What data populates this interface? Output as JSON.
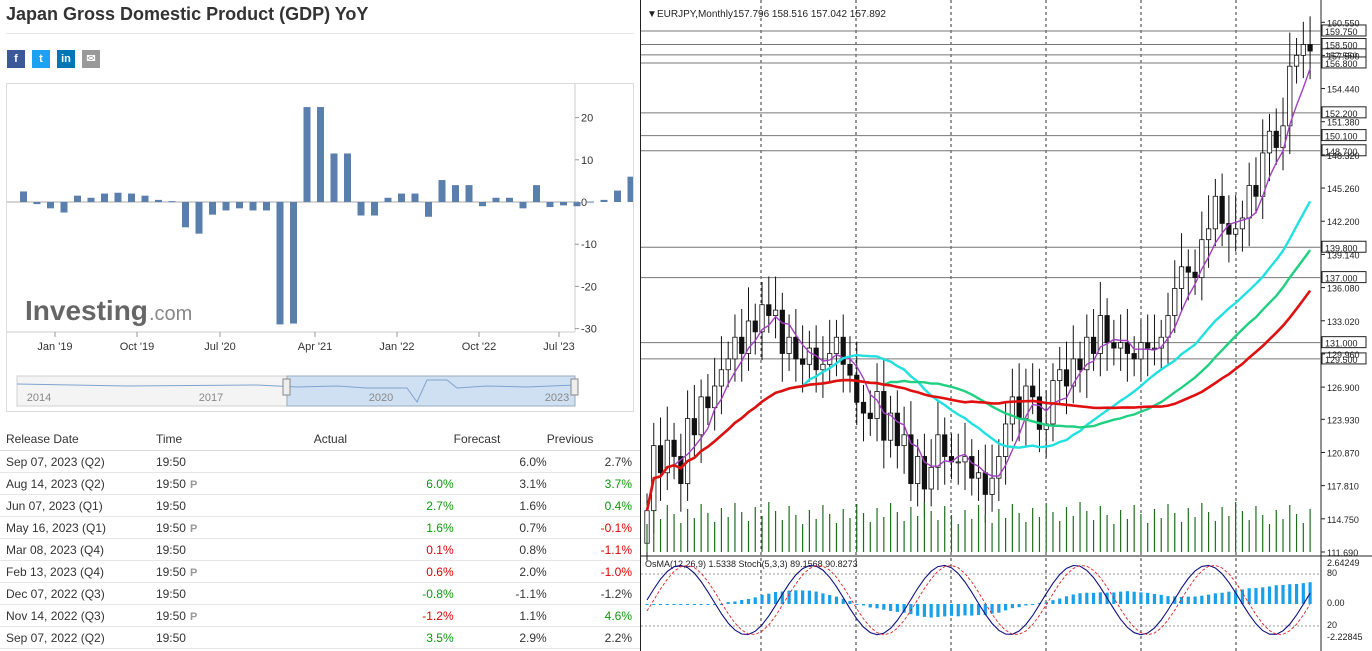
{
  "left": {
    "title": "Japan Gross Domestic Product (GDP) YoY",
    "share_icons": [
      {
        "name": "facebook-icon",
        "glyph": "f",
        "color": "#3b5998"
      },
      {
        "name": "twitter-icon",
        "glyph": "t",
        "color": "#1da1f2"
      },
      {
        "name": "linkedin-icon",
        "glyph": "in",
        "color": "#0077b5"
      },
      {
        "name": "email-icon",
        "glyph": "✉",
        "color": "#999999"
      }
    ],
    "watermark_text": "Investing",
    "watermark_suffix": ".com",
    "navigator_labels": [
      "2014",
      "2017",
      "2020",
      "2023"
    ],
    "table": {
      "headers": [
        "Release Date",
        "Time",
        "Actual",
        "Forecast",
        "Previous"
      ],
      "rows": [
        {
          "date": "Sep 07, 2023 (Q2)",
          "time": "19:50",
          "prelim": false,
          "actual": "",
          "actual_color": "",
          "forecast": "6.0%",
          "previous": "2.7%",
          "previous_color": ""
        },
        {
          "date": "Aug 14, 2023 (Q2)",
          "time": "19:50",
          "prelim": true,
          "actual": "6.0%",
          "actual_color": "green",
          "forecast": "3.1%",
          "previous": "3.7%",
          "previous_color": "green"
        },
        {
          "date": "Jun 07, 2023 (Q1)",
          "time": "19:50",
          "prelim": false,
          "actual": "2.7%",
          "actual_color": "green",
          "forecast": "1.6%",
          "previous": "0.4%",
          "previous_color": "green"
        },
        {
          "date": "May 16, 2023 (Q1)",
          "time": "19:50",
          "prelim": true,
          "actual": "1.6%",
          "actual_color": "green",
          "forecast": "0.7%",
          "previous": "-0.1%",
          "previous_color": "red"
        },
        {
          "date": "Mar 08, 2023 (Q4)",
          "time": "19:50",
          "prelim": false,
          "actual": "0.1%",
          "actual_color": "red",
          "forecast": "0.8%",
          "previous": "-1.1%",
          "previous_color": "red"
        },
        {
          "date": "Feb 13, 2023 (Q4)",
          "time": "19:50",
          "prelim": true,
          "actual": "0.6%",
          "actual_color": "red",
          "forecast": "2.0%",
          "previous": "-1.0%",
          "previous_color": "red"
        },
        {
          "date": "Dec 07, 2022 (Q3)",
          "time": "19:50",
          "prelim": false,
          "actual": "-0.8%",
          "actual_color": "green",
          "forecast": "-1.1%",
          "previous": "-1.2%",
          "previous_color": ""
        },
        {
          "date": "Nov 14, 2022 (Q3)",
          "time": "19:50",
          "prelim": true,
          "actual": "-1.2%",
          "actual_color": "red",
          "forecast": "1.1%",
          "previous": "4.6%",
          "previous_color": "green"
        },
        {
          "date": "Sep 07, 2022 (Q2)",
          "time": "19:50",
          "prelim": false,
          "actual": "3.5%",
          "actual_color": "green",
          "forecast": "2.9%",
          "previous": "2.2%",
          "previous_color": ""
        }
      ],
      "prelim_glyph": "P"
    }
  },
  "chart_data": [
    {
      "type": "bar",
      "title": "",
      "x_tick_labels": [
        "Jan '19",
        "Oct '19",
        "Jul '20",
        "Apr '21",
        "Jan '22",
        "Oct '22",
        "Jul '23"
      ],
      "y_ticks": [
        20,
        10,
        0,
        -10,
        -20,
        -30
      ],
      "ylim": [
        -30,
        25
      ],
      "bar_color": "#5b7fad",
      "values": [
        2.5,
        -0.5,
        -1.5,
        -2.5,
        1.5,
        1.0,
        2.0,
        2.2,
        2.0,
        1.5,
        0.5,
        0.2,
        -6.0,
        -7.5,
        -3.0,
        -2.0,
        -1.5,
        -2.0,
        -2.0,
        -29.0,
        -28.8,
        22.5,
        22.5,
        11.5,
        11.5,
        -3.2,
        -3.2,
        1.0,
        2.0,
        2.0,
        -3.5,
        5.2,
        4.0,
        4.0,
        -1.0,
        1.0,
        1.0,
        -1.5,
        4.0,
        -1.2,
        -0.8,
        -1.0,
        0.1,
        0.5,
        2.7,
        6.0
      ]
    },
    {
      "type": "candlestick",
      "title": "EURJPY,Monthly",
      "ohlc_header": "157.796 158.516 157.042 157.892",
      "y_ticks": [
        160.55,
        157.5,
        154.44,
        151.38,
        148.32,
        145.26,
        142.2,
        139.14,
        136.08,
        133.02,
        129.96,
        126.9,
        123.93,
        120.87,
        117.81,
        114.75,
        111.69
      ],
      "ylim": [
        111.69,
        161.5
      ],
      "level_lines": [
        {
          "price": 159.75,
          "label": "159.750"
        },
        {
          "price": 158.5,
          "label": "158.500"
        },
        {
          "price": 157.55,
          "label": "157.550"
        },
        {
          "price": 156.8,
          "label": "156.800"
        },
        {
          "price": 152.2,
          "label": "152.200"
        },
        {
          "price": 150.1,
          "label": "150.100"
        },
        {
          "price": 148.7,
          "label": "148.700"
        },
        {
          "price": 139.8,
          "label": "139.800"
        },
        {
          "price": 137.0,
          "label": "137.000"
        },
        {
          "price": 131.0,
          "label": "131.000"
        },
        {
          "price": 129.5,
          "label": "129.500"
        }
      ],
      "closes": [
        115.5,
        121.5,
        119.0,
        122.0,
        120.5,
        118.0,
        124.0,
        122.5,
        126.0,
        125.0,
        127.0,
        128.5,
        129.5,
        131.5,
        130.0,
        133.0,
        132.0,
        134.5,
        133.5,
        134.0,
        130.0,
        131.5,
        129.5,
        129.0,
        130.5,
        128.5,
        129.0,
        130.0,
        131.5,
        129.0,
        128.0,
        125.5,
        124.5,
        124.0,
        126.5,
        122.0,
        124.5,
        121.5,
        122.5,
        118.0,
        120.5,
        117.5,
        119.5,
        122.5,
        120.5,
        120.0,
        120.0,
        120.5,
        118.5,
        119.0,
        117.0,
        118.5,
        120.5,
        123.5,
        126.0,
        124.0,
        127.0,
        126.0,
        123.0,
        123.5,
        127.5,
        128.5,
        127.0,
        129.5,
        128.5,
        131.5,
        130.0,
        133.5,
        131.0,
        130.5,
        131.0,
        130.0,
        129.5,
        131.0,
        130.5,
        130.5,
        131.5,
        133.5,
        136.0,
        138.0,
        137.5,
        137.0,
        140.5,
        141.5,
        144.5,
        142.0,
        141.0,
        141.5,
        142.5,
        145.5,
        144.5,
        148.5,
        150.5,
        149.0,
        151.0,
        156.5,
        157.5,
        158.5,
        157.9
      ]
    }
  ],
  "oscillator": {
    "label": "OsMA(12,26,9) 1.5338 Stoch(5,3,3) 89.1568 90.8273",
    "ticks": [
      "2.64249",
      "80",
      "0.00",
      "20",
      "-2.22845"
    ]
  }
}
